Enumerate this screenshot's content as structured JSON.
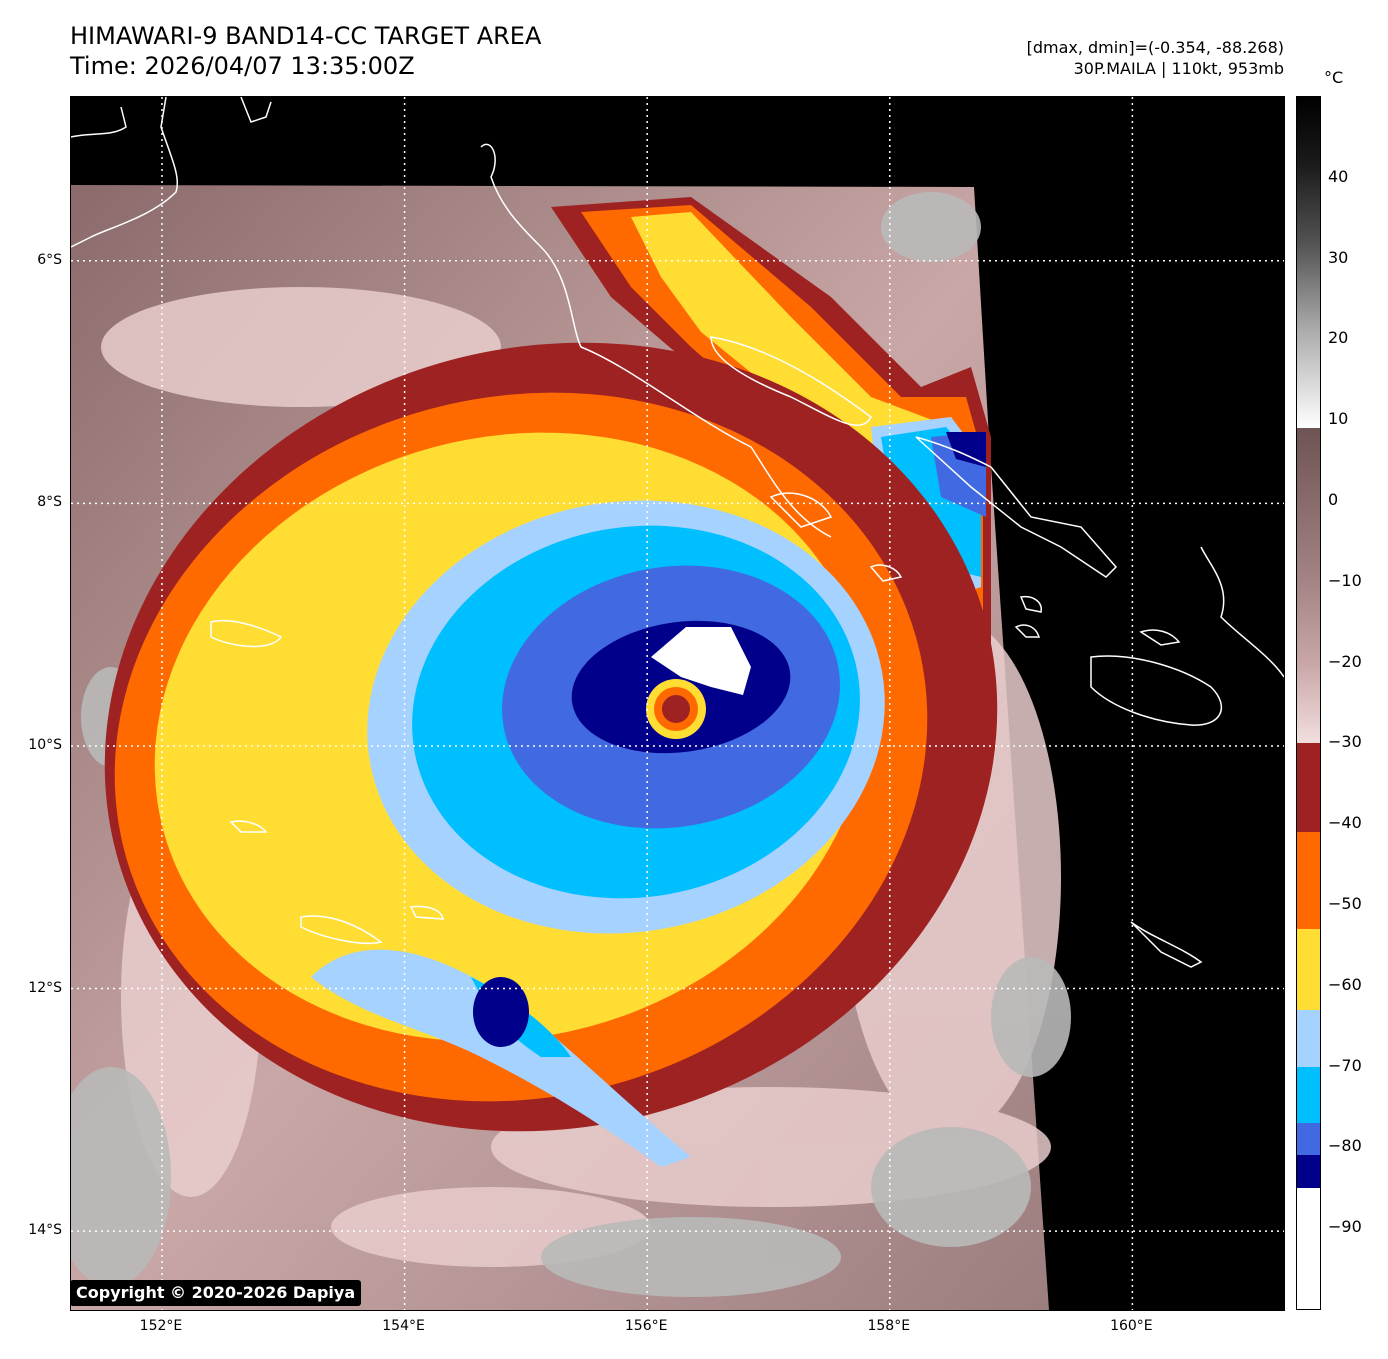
{
  "header": {
    "title_line1": "HIMAWARI-9 BAND14-CC TARGET AREA",
    "title_line2": "Time: 2026/04/07 13:35:00Z",
    "range_text": "[dmax, dmin]=(-0.354, -88.268)",
    "storm_text": "30P.MAILA | 110kt, 953mb"
  },
  "map": {
    "lon_range": [
      151.25,
      161.25
    ],
    "lat_range": [
      -14.65,
      -4.65
    ],
    "lat_ticks": [
      {
        "value": -6,
        "label": "6°S"
      },
      {
        "value": -8,
        "label": "8°S"
      },
      {
        "value": -10,
        "label": "10°S"
      },
      {
        "value": -12,
        "label": "12°S"
      },
      {
        "value": -14,
        "label": "14°S"
      }
    ],
    "lon_ticks": [
      {
        "value": 152,
        "label": "152°E"
      },
      {
        "value": 154,
        "label": "154°E"
      },
      {
        "value": 156,
        "label": "156°E"
      },
      {
        "value": 158,
        "label": "158°E"
      },
      {
        "value": 160,
        "label": "160°E"
      }
    ],
    "storm_center": {
      "lon": 156.25,
      "lat": -9.6
    },
    "gridline_style": "white dotted",
    "coastline_color": "#ffffff",
    "no_data_color": "#000000"
  },
  "colorbar": {
    "unit": "°C",
    "range": [
      -100,
      50
    ],
    "tick_values": [
      40,
      30,
      20,
      10,
      0,
      -10,
      -20,
      -30,
      -40,
      -50,
      -60,
      -70,
      -80,
      -90
    ],
    "tick_labels": [
      "40",
      "30",
      "20",
      "10",
      "0",
      "−10",
      "−20",
      "−30",
      "−40",
      "−50",
      "−60",
      "−70",
      "−80",
      "−90"
    ],
    "segments": [
      {
        "from": 9,
        "to": 50,
        "style": "grayscale"
      },
      {
        "from": -30,
        "to": 9,
        "style": "brown-pink"
      },
      {
        "from": -41,
        "to": -30,
        "color": "#9e2222"
      },
      {
        "from": -53,
        "to": -41,
        "color": "#ff6a00"
      },
      {
        "from": -63,
        "to": -53,
        "color": "#ffdd33"
      },
      {
        "from": -70,
        "to": -63,
        "color": "#a6d2ff"
      },
      {
        "from": -77,
        "to": -70,
        "color": "#00bfff"
      },
      {
        "from": -81,
        "to": -77,
        "color": "#4169e1"
      },
      {
        "from": -85,
        "to": -81,
        "color": "#00008b"
      },
      {
        "from": -100,
        "to": -85,
        "color": "#ffffff"
      }
    ]
  },
  "copyright": "Copyright © 2020-2026 Dapiya"
}
